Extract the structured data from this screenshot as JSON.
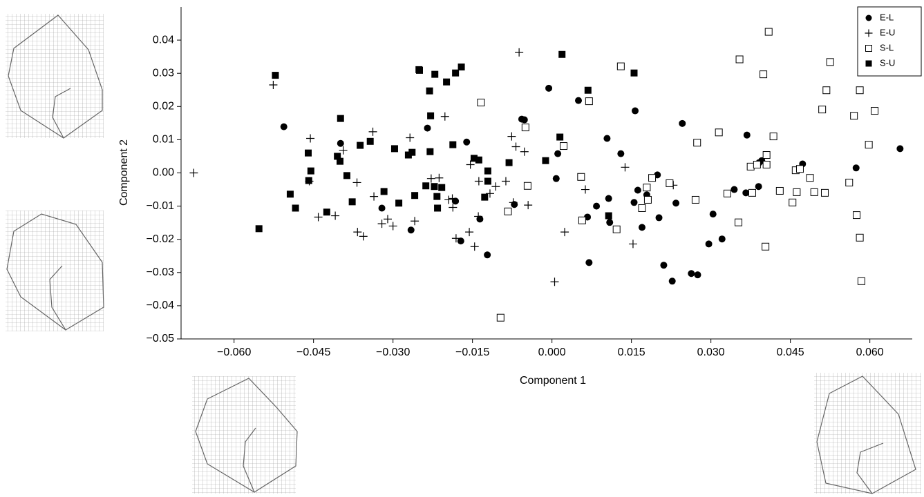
{
  "chart_data": {
    "type": "scatter",
    "x_label": "Component 1",
    "y_label": "Component 2",
    "xlim": [
      -0.07,
      0.068
    ],
    "ylim": [
      -0.05,
      0.05
    ],
    "xticks": [
      {
        "value": -0.06,
        "label": "−0.060"
      },
      {
        "value": -0.045,
        "label": "−0.045"
      },
      {
        "value": -0.03,
        "label": "−0.030"
      },
      {
        "value": -0.015,
        "label": "−0.015"
      },
      {
        "value": 0,
        "label": "0.000"
      },
      0.015,
      {
        "value": 0.03,
        "label": "0.030"
      },
      0.045,
      {
        "value": 0.06,
        "label": "0.060"
      }
    ],
    "yticks": [
      0.04,
      0.03,
      0.02,
      0.01,
      {
        "value": 0,
        "label": "0.00"
      },
      {
        "value": -0.01,
        "label": "−0.01"
      },
      {
        "value": -0.02,
        "label": "−0.02"
      },
      {
        "value": -0.03,
        "label": "−0.03"
      },
      {
        "value": -0.04,
        "label": "−0.04"
      },
      {
        "value": -0.05,
        "label": "−0.05"
      }
    ],
    "legend_position": "upper right",
    "series": [
      {
        "name": "E-L",
        "color": "#000000",
        "marker": "circle",
        "x": [
          -0.0506,
          -0.0399,
          -0.0321,
          -0.0266,
          -0.0235,
          -0.0182,
          -0.0172,
          -0.0161,
          -0.0136,
          -0.0122,
          -0.0071,
          -0.0057,
          -0.0052,
          -0.0006,
          0.0008,
          0.0011,
          0.005,
          0.0067,
          0.007,
          0.0084,
          0.0104,
          0.0107,
          0.0109,
          0.013,
          0.0155,
          0.0157,
          0.0162,
          0.017,
          0.0179,
          0.0199,
          0.0202,
          0.0211,
          0.0227,
          0.0234,
          0.0246,
          0.0263,
          0.0275,
          0.0296,
          0.0304,
          0.0321,
          0.0344,
          0.0368,
          0.0366,
          0.039,
          0.0391,
          0.0396,
          0.0473,
          0.0574,
          0.0657
        ],
        "values": [
          0.0139,
          0.0089,
          -0.0106,
          -0.0172,
          0.0135,
          -0.0085,
          -0.0205,
          0.0093,
          -0.0139,
          -0.0247,
          -0.0095,
          0.0162,
          0.016,
          0.0255,
          -0.0017,
          0.0058,
          0.0218,
          -0.0133,
          -0.027,
          -0.01,
          0.0104,
          -0.0077,
          -0.0149,
          0.0058,
          -0.0089,
          0.0187,
          -0.0052,
          -0.0164,
          -0.0066,
          -0.0006,
          -0.0135,
          -0.0278,
          -0.0326,
          -0.0091,
          0.0149,
          -0.0303,
          -0.0307,
          -0.0214,
          -0.0124,
          -0.0199,
          -0.005,
          0.0114,
          -0.006,
          -0.0041,
          0.0031,
          0.0037,
          0.0027,
          0.0015,
          0.0073
        ]
      },
      {
        "name": "E-U",
        "color": "#000000",
        "marker": "plus",
        "x": [
          -0.0676,
          -0.0526,
          -0.0456,
          -0.0458,
          -0.0441,
          -0.0409,
          -0.0394,
          -0.0368,
          -0.0367,
          -0.0356,
          -0.0338,
          -0.0336,
          -0.0321,
          -0.031,
          -0.03,
          -0.0268,
          -0.0259,
          -0.0228,
          -0.0213,
          -0.0202,
          -0.0195,
          -0.0188,
          -0.0181,
          -0.0187,
          -0.0156,
          -0.0154,
          -0.0146,
          -0.0138,
          -0.0139,
          -0.0117,
          -0.0106,
          -0.0087,
          -0.0076,
          -0.0073,
          -0.0068,
          -0.0062,
          -0.0052,
          -0.0045,
          0.0005,
          0.0024,
          0.0063,
          0.0138,
          0.0153,
          0.0229
        ],
        "values": [
          0,
          0.0265,
          0.0104,
          -0.0025,
          -0.0133,
          -0.0129,
          0.0068,
          -0.0029,
          -0.0178,
          -0.0191,
          0.0124,
          -0.0071,
          -0.0153,
          -0.0139,
          -0.016,
          0.0106,
          -0.0145,
          -0.0017,
          -0.0015,
          0.017,
          -0.0081,
          -0.0077,
          -0.0197,
          -0.0104,
          -0.0178,
          0.0025,
          -0.0222,
          -0.0025,
          -0.0131,
          -0.0062,
          -0.0041,
          -0.0025,
          0.011,
          -0.0089,
          0.0079,
          0.0363,
          0.0064,
          -0.0097,
          -0.0328,
          -0.0178,
          -0.005,
          0.0017,
          -0.0214,
          -0.0037
        ]
      },
      {
        "name": "S-L",
        "color": "#000000",
        "marker": "square-open",
        "x": [
          -0.0134,
          -0.0097,
          -0.0083,
          -0.005,
          -0.0046,
          0.0022,
          0.0055,
          0.0057,
          0.007,
          0.0122,
          0.013,
          0.017,
          0.0179,
          0.0181,
          0.0189,
          0.0222,
          0.0271,
          0.0274,
          0.0315,
          0.0331,
          0.0352,
          0.0354,
          0.0375,
          0.0378,
          0.0387,
          0.0399,
          0.0403,
          0.0405,
          0.0405,
          0.0409,
          0.0418,
          0.043,
          0.0454,
          0.046,
          0.0462,
          0.0468,
          0.0487,
          0.0495,
          0.051,
          0.0515,
          0.0518,
          0.0525,
          0.0561,
          0.057,
          0.0575,
          0.0581,
          0.0581,
          0.0584,
          0.0598,
          0.0609
        ],
        "values": [
          0.0212,
          -0.0436,
          -0.0116,
          0.0137,
          -0.0039,
          0.0081,
          -0.0012,
          -0.0143,
          0.0216,
          -0.017,
          0.0321,
          -0.0106,
          -0.0044,
          -0.0081,
          -0.0015,
          -0.0031,
          -0.0081,
          0.0091,
          0.0122,
          -0.0062,
          -0.0149,
          0.0342,
          0.0019,
          -0.006,
          0.0025,
          0.0297,
          -0.0222,
          0.0054,
          0.0025,
          0.0425,
          0.011,
          -0.0054,
          -0.0089,
          0.0008,
          -0.0058,
          0.0012,
          -0.0015,
          -0.0058,
          0.0191,
          -0.006,
          0.0249,
          0.0334,
          -0.0029,
          0.0172,
          -0.0127,
          0.0249,
          -0.0195,
          -0.0326,
          0.0085,
          0.0187
        ]
      },
      {
        "name": "S-U",
        "color": "#000000",
        "marker": "square",
        "x": [
          -0.0553,
          -0.0522,
          -0.0494,
          -0.0484,
          -0.046,
          -0.0459,
          -0.0455,
          -0.0425,
          -0.0405,
          -0.04,
          -0.0399,
          -0.0387,
          -0.0377,
          -0.0362,
          -0.0343,
          -0.0317,
          -0.0297,
          -0.0289,
          -0.0271,
          -0.0264,
          -0.0259,
          -0.0251,
          -0.025,
          -0.0238,
          -0.0231,
          -0.0229,
          -0.023,
          -0.0222,
          -0.0221,
          -0.0217,
          -0.0216,
          -0.0208,
          -0.0199,
          -0.0187,
          -0.0182,
          -0.0171,
          -0.0147,
          -0.0138,
          -0.0127,
          -0.0121,
          -0.0121,
          -0.0081,
          -0.0012,
          0.0015,
          0.0019,
          0.0068,
          0.0107,
          0.0155
        ],
        "values": [
          -0.0168,
          0.0294,
          -0.0064,
          -0.0106,
          0.006,
          -0.0023,
          0.0006,
          -0.0118,
          0.005,
          0.0035,
          0.0164,
          -0.0008,
          -0.0087,
          0.0083,
          0.0095,
          -0.0056,
          0.0073,
          -0.0091,
          0.0054,
          0.0062,
          -0.0068,
          0.0311,
          0.0309,
          -0.0039,
          0.0247,
          0.0172,
          0.0064,
          -0.0041,
          0.0297,
          -0.0071,
          -0.0106,
          -0.0044,
          0.0274,
          0.0085,
          0.0301,
          0.0319,
          0.0044,
          0.0039,
          -0.0073,
          0.0006,
          -0.0025,
          0.0031,
          0.0037,
          0.0108,
          0.0357,
          0.0249,
          -0.0129,
          0.0301
        ]
      }
    ]
  }
}
